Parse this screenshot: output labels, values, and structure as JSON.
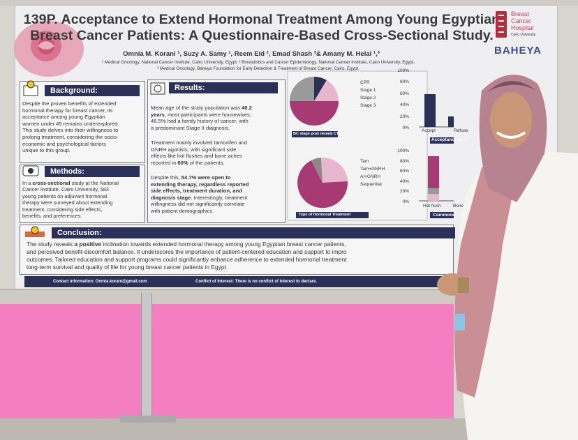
{
  "poster": {
    "title_line1": "139P. Acceptance to Extend Hormonal Treatment Among Young Egyptian",
    "title_line2": "Breast Cancer Patients: A Questionnaire-Based Cross-Sectional Study.",
    "authors": "Omnia M. Korani ¹, Suzy A. Samy ¹, Reem Eid ², Emad Shash ³& Amany M. Helal ¹,³",
    "affiliations": [
      "¹ Medical Oncology, National Cancer Institute, Cairo University, Egypt, ² Biostatistics and Cancer Epidemiology, National Cancer Institute, Cairo University, Egypt,",
      "³ Medical Oncology, Baheya Foundation for Early Detection & Treatment of Breast Cancer, Cairo, Egypt."
    ],
    "logo": {
      "line1": "Breast",
      "line2": "Cancer",
      "line3": "Hospital",
      "line4": "Cairo University",
      "brand": "BAHEYA"
    },
    "background": {
      "heading": "Background:",
      "lines": [
        [
          "Despite the proven benefits of extended"
        ],
        [
          "hormonal therapy for breast cancer, its"
        ],
        [
          "acceptance among young Egyptian"
        ],
        [
          "women under 45 remains underexplored."
        ],
        [
          "This study delves into their willingness to"
        ],
        [
          "prolong treatment, considering the socio-"
        ],
        [
          "economic and psychological factors"
        ],
        [
          "unique to this group."
        ]
      ]
    },
    "methods": {
      "heading": "Methods:",
      "lines": [
        [
          "In a ",
          "cross-sectional",
          " study at the National"
        ],
        [
          "Cancer Institute, Cairo University, 583"
        ],
        [
          "young patients on adjuvant hormonal"
        ],
        [
          "therapy were surveyed about extending"
        ],
        [
          "treatment, considering side effects,"
        ],
        [
          "benefits, and preferences."
        ]
      ]
    },
    "results": {
      "heading": "Results:",
      "para1": [
        [
          "Mean age of the study population was ",
          "40.2"
        ],
        [
          "",
          "years",
          ", most participants were housewives;"
        ],
        [
          "46.5% had a family history of cancer, with"
        ],
        [
          "a predominant Stage II diagnosis."
        ]
      ],
      "para2": [
        [
          "Treatment mainly involved tamoxifen and"
        ],
        [
          "GNRH agonists, with significant side"
        ],
        [
          "effects like hot flushes and bone aches"
        ],
        [
          "reported in ",
          "80%",
          " of the patients."
        ]
      ],
      "para3": [
        [
          "Despite this, ",
          "54.7% were open to"
        ],
        [
          "",
          "extending therapy, regardless reported"
        ],
        [
          "",
          "side effects, treatment duration, and"
        ],
        [
          "",
          "diagnosis stage",
          ". Interestingly, treatment"
        ],
        [
          "willingness did not significantly correlate"
        ],
        [
          "with patient demographics."
        ]
      ]
    },
    "charts": {
      "pie1_caption": "BC stage post neoadj CTH",
      "pie1_legend": [
        "CPR",
        "Stage 1",
        "Stage 2",
        "Stage 3"
      ],
      "pie2_caption": "Type of Hormonal Treatment",
      "pie2_legend": [
        "Tam",
        "Tam+GNRH",
        "AI+GNRH",
        "Sequential"
      ],
      "bar1_ticks": [
        "100%",
        "80%",
        "60%",
        "40%",
        "20%",
        "0%"
      ],
      "bar1_categories": [
        "Accept",
        "Refuse"
      ],
      "bar1_caption": "Acceptance to e",
      "bar2_ticks": [
        "100%",
        "80%",
        "60%",
        "40%",
        "20%",
        "0%"
      ],
      "bar2_categories": [
        "Hot flush",
        "Bone"
      ],
      "bar2_caption": "Commone"
    },
    "conclusion": {
      "heading": "Conclusion:",
      "lines": [
        [
          "The study reveals ",
          "a positive",
          " inclination towards extended hormonal therapy among young Egyptian breast cancer patients,"
        ],
        [
          "and perceived benefit-discomfort balance. It underscores the importance of patient-centered education and support to impro"
        ],
        [
          "outcomes. Tailored education and support programs could significantly enhance adherence to extended hormonal treatment"
        ],
        [
          "long-term survival and quality of life for young breast cancer patients in Egypt."
        ]
      ]
    },
    "footer": {
      "contact": "Contact information: Omnia.korani@gmail.com",
      "conflict": "Conflict of Interest:  There is no conflict of interest to declare."
    }
  }
}
